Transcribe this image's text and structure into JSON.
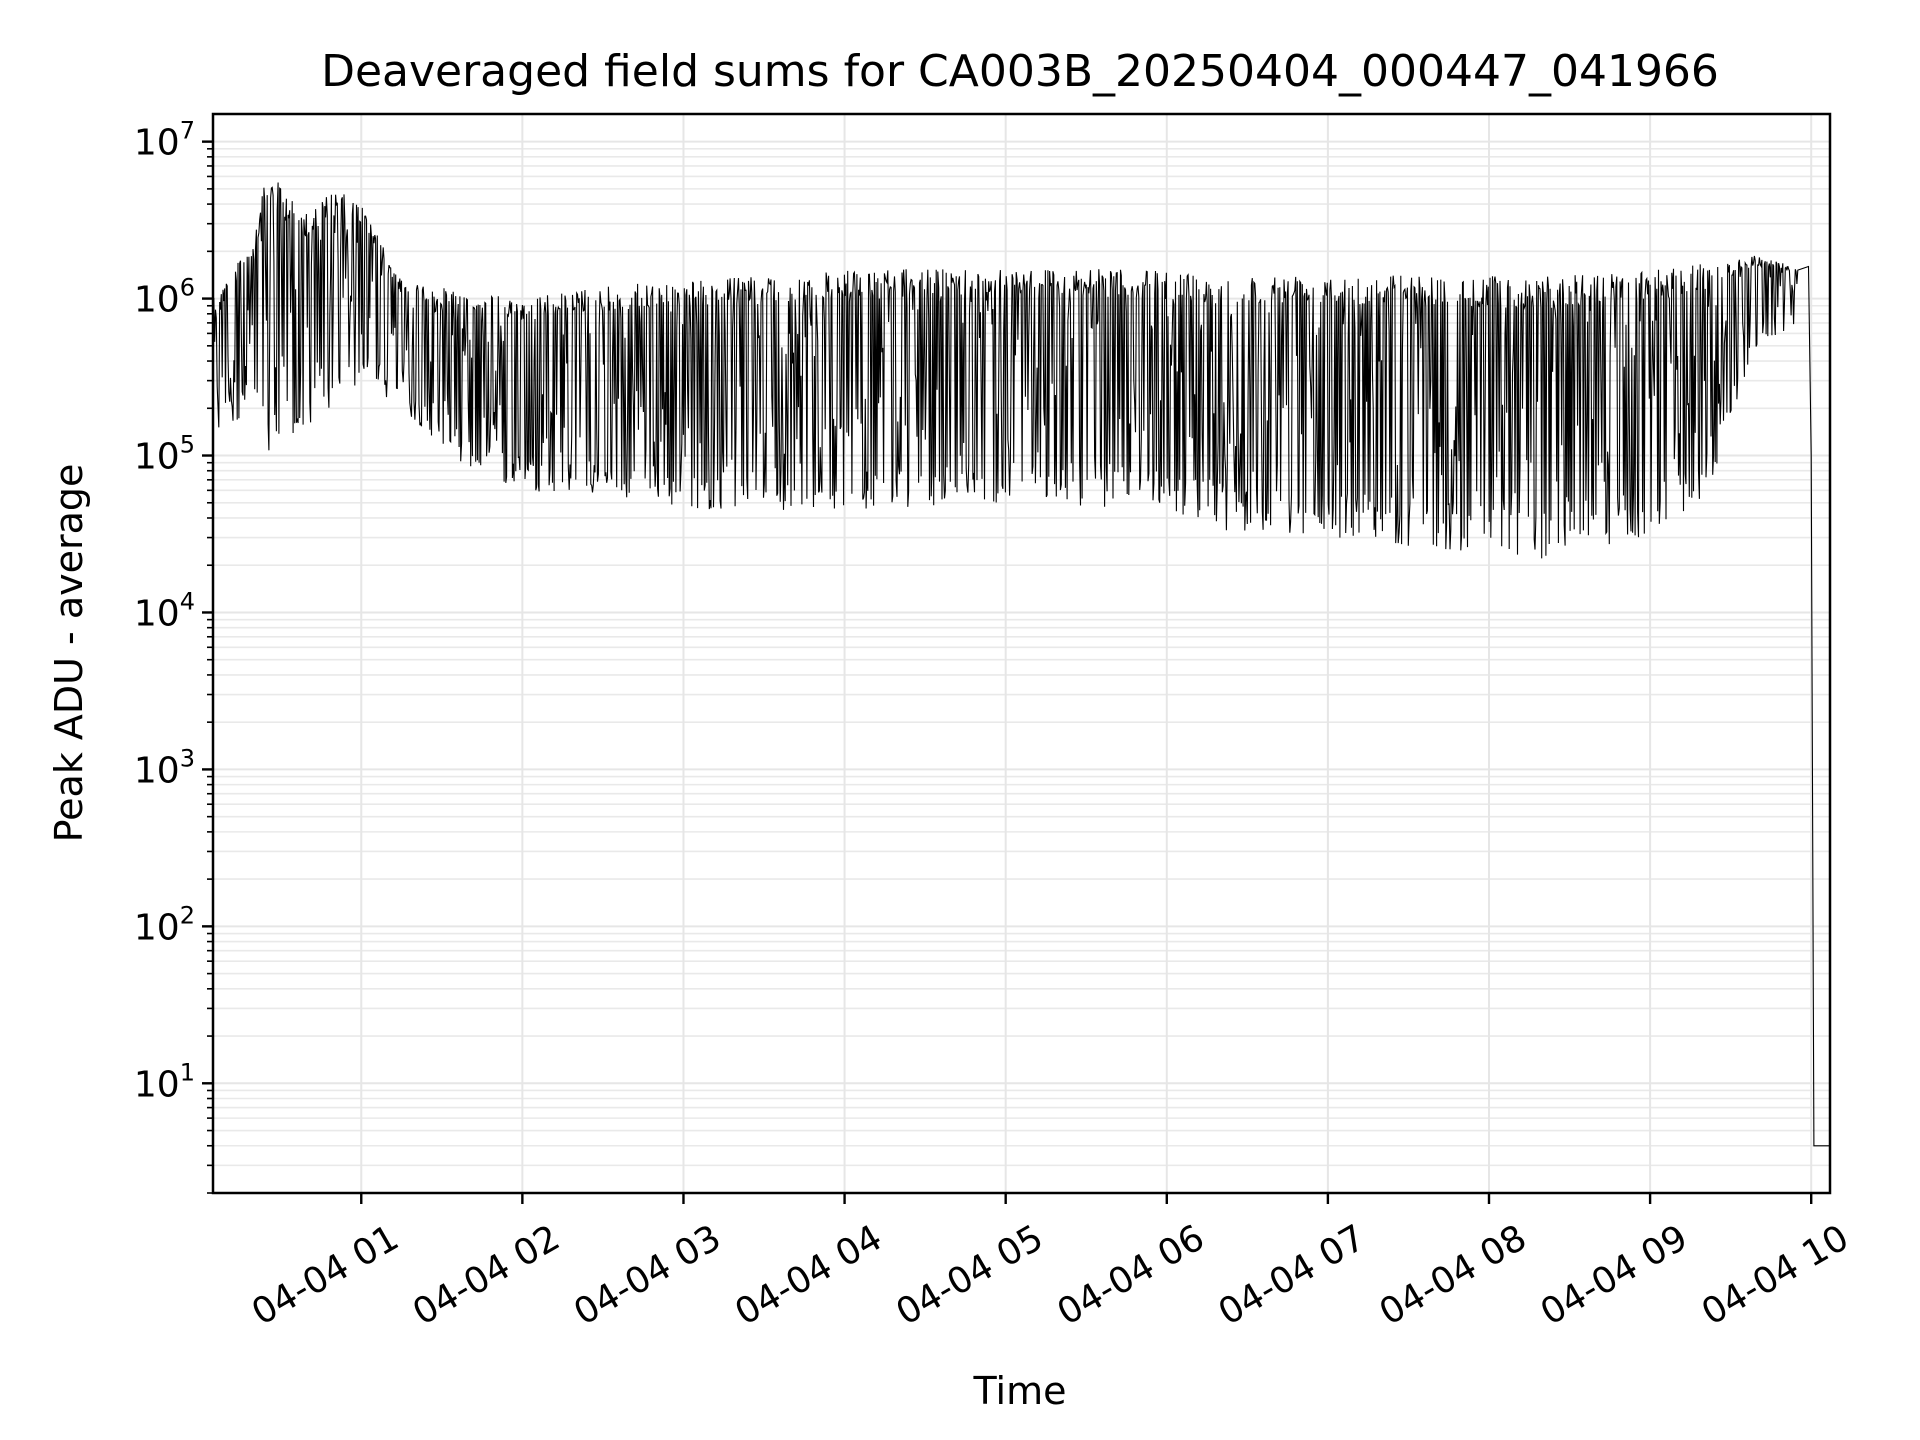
{
  "chart_data": {
    "type": "line",
    "title": "Deaveraged field sums for CA003B_20250404_000447_041966",
    "xlabel": "Time",
    "ylabel": "Peak ADU - average",
    "yscale": "log",
    "ylim": [
      2,
      15000000
    ],
    "xlim": [
      "2025-04-04 00:04:47",
      "2025-04-04 10:07:00"
    ],
    "grid": true,
    "legend": "none",
    "line_color": "#000000",
    "x_ticks": [
      {
        "value": "2025-04-04 01:00",
        "label": "04-04 01"
      },
      {
        "value": "2025-04-04 02:00",
        "label": "04-04 02"
      },
      {
        "value": "2025-04-04 03:00",
        "label": "04-04 03"
      },
      {
        "value": "2025-04-04 04:00",
        "label": "04-04 04"
      },
      {
        "value": "2025-04-04 05:00",
        "label": "04-04 05"
      },
      {
        "value": "2025-04-04 06:00",
        "label": "04-04 06"
      },
      {
        "value": "2025-04-04 07:00",
        "label": "04-04 07"
      },
      {
        "value": "2025-04-04 08:00",
        "label": "04-04 08"
      },
      {
        "value": "2025-04-04 09:00",
        "label": "04-04 09"
      },
      {
        "value": "2025-04-04 10:00",
        "label": "04-04 10"
      }
    ],
    "y_ticks": [
      {
        "value": 10,
        "base": "10",
        "exp": "1"
      },
      {
        "value": 100,
        "base": "10",
        "exp": "2"
      },
      {
        "value": 1000,
        "base": "10",
        "exp": "3"
      },
      {
        "value": 10000,
        "base": "10",
        "exp": "4"
      },
      {
        "value": 100000,
        "base": "10",
        "exp": "5"
      },
      {
        "value": 1000000,
        "base": "10",
        "exp": "6"
      },
      {
        "value": 10000000,
        "base": "10",
        "exp": "7"
      }
    ],
    "series_envelope": [
      {
        "x": "2025-04-04 00:04:47",
        "low": 130000,
        "high": 1000000
      },
      {
        "x": "2025-04-04 00:20:00",
        "low": 200000,
        "high": 2500000
      },
      {
        "x": "2025-04-04 00:25:00",
        "low": 90000,
        "high": 6500000
      },
      {
        "x": "2025-04-04 00:40:00",
        "low": 150000,
        "high": 3500000
      },
      {
        "x": "2025-04-04 00:50:00",
        "low": 200000,
        "high": 5000000
      },
      {
        "x": "2025-04-04 01:00:00",
        "low": 300000,
        "high": 4000000
      },
      {
        "x": "2025-04-04 01:15:00",
        "low": 200000,
        "high": 1300000
      },
      {
        "x": "2025-04-04 01:40:00",
        "low": 80000,
        "high": 1100000
      },
      {
        "x": "2025-04-04 02:00:00",
        "low": 60000,
        "high": 1000000
      },
      {
        "x": "2025-04-04 02:30:00",
        "low": 55000,
        "high": 1200000
      },
      {
        "x": "2025-04-04 03:00:00",
        "low": 45000,
        "high": 1300000
      },
      {
        "x": "2025-04-04 03:30:00",
        "low": 45000,
        "high": 1400000
      },
      {
        "x": "2025-04-04 04:00:00",
        "low": 45000,
        "high": 1500000
      },
      {
        "x": "2025-04-04 05:00:00",
        "low": 50000,
        "high": 1600000
      },
      {
        "x": "2025-04-04 06:00:00",
        "low": 45000,
        "high": 1500000
      },
      {
        "x": "2025-04-04 06:30:00",
        "low": 30000,
        "high": 1400000
      },
      {
        "x": "2025-04-04 07:00:00",
        "low": 30000,
        "high": 1500000
      },
      {
        "x": "2025-04-04 07:45:00",
        "low": 25000,
        "high": 1400000
      },
      {
        "x": "2025-04-04 08:20:00",
        "low": 22000,
        "high": 1400000
      },
      {
        "x": "2025-04-04 09:00:00",
        "low": 30000,
        "high": 1500000
      },
      {
        "x": "2025-04-04 09:20:00",
        "low": 50000,
        "high": 1700000
      },
      {
        "x": "2025-04-04 09:40:00",
        "low": 500000,
        "high": 1900000
      },
      {
        "x": "2025-04-04 09:55:00",
        "low": 700000,
        "high": 1600000
      }
    ],
    "tail_points": [
      {
        "x": "2025-04-04 09:59:00",
        "y": 1600000
      },
      {
        "x": "2025-04-04 10:00:00",
        "y": 100000
      },
      {
        "x": "2025-04-04 10:01:00",
        "y": 4
      },
      {
        "x": "2025-04-04 10:07:00",
        "y": 4
      }
    ]
  }
}
